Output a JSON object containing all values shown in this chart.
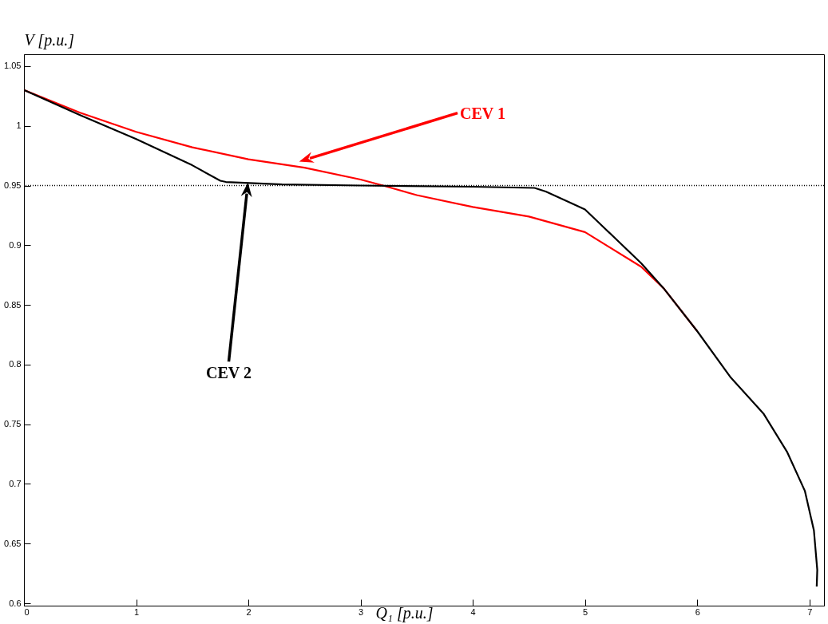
{
  "chart_data": {
    "type": "line",
    "xlabel": "Q₁ [p.u.]",
    "ylabel": "V [p.u.]",
    "xlim": [
      0,
      7.13
    ],
    "ylim": [
      0.598,
      1.06
    ],
    "xticks": [
      0,
      1,
      2,
      3,
      4,
      5,
      6,
      7
    ],
    "yticks": [
      0.6,
      0.65,
      0.7,
      0.75,
      0.8,
      0.85,
      0.9,
      0.95,
      1,
      1.05
    ],
    "grid": false,
    "line_style": "solid",
    "marker": "none",
    "series": [
      {
        "color": "#ff0000",
        "x": [
          0,
          0.5,
          1,
          1.5,
          2,
          2.5,
          3,
          3.2,
          3.5,
          4,
          4.5,
          5,
          5.5,
          5.7,
          6
        ],
        "values": [
          1.03,
          1.011,
          0.995,
          0.982,
          0.972,
          0.965,
          0.955,
          0.95,
          0.942,
          0.932,
          0.924,
          0.911,
          0.882,
          0.864,
          0.828
        ]
      },
      {
        "color": "#000000",
        "x": [
          0,
          0.5,
          1,
          1.5,
          1.75,
          1.8,
          2.3,
          3,
          4,
          4.55,
          4.65,
          5,
          5.5,
          5.7,
          6,
          6.3,
          6.59,
          6.8,
          6.96,
          7.04,
          7.07,
          7.065
        ],
        "values": [
          1.03,
          1.009,
          0.989,
          0.967,
          0.954,
          0.953,
          0.951,
          0.95,
          0.949,
          0.948,
          0.945,
          0.93,
          0.885,
          0.864,
          0.828,
          0.789,
          0.759,
          0.727,
          0.694,
          0.661,
          0.628,
          0.614
        ]
      }
    ],
    "ref_lines": [
      {
        "axis": "y",
        "value": 0.95,
        "color": "#000000",
        "line_style": "dotted"
      }
    ],
    "annotations": [
      "CEV 1",
      "CEV 2"
    ]
  }
}
